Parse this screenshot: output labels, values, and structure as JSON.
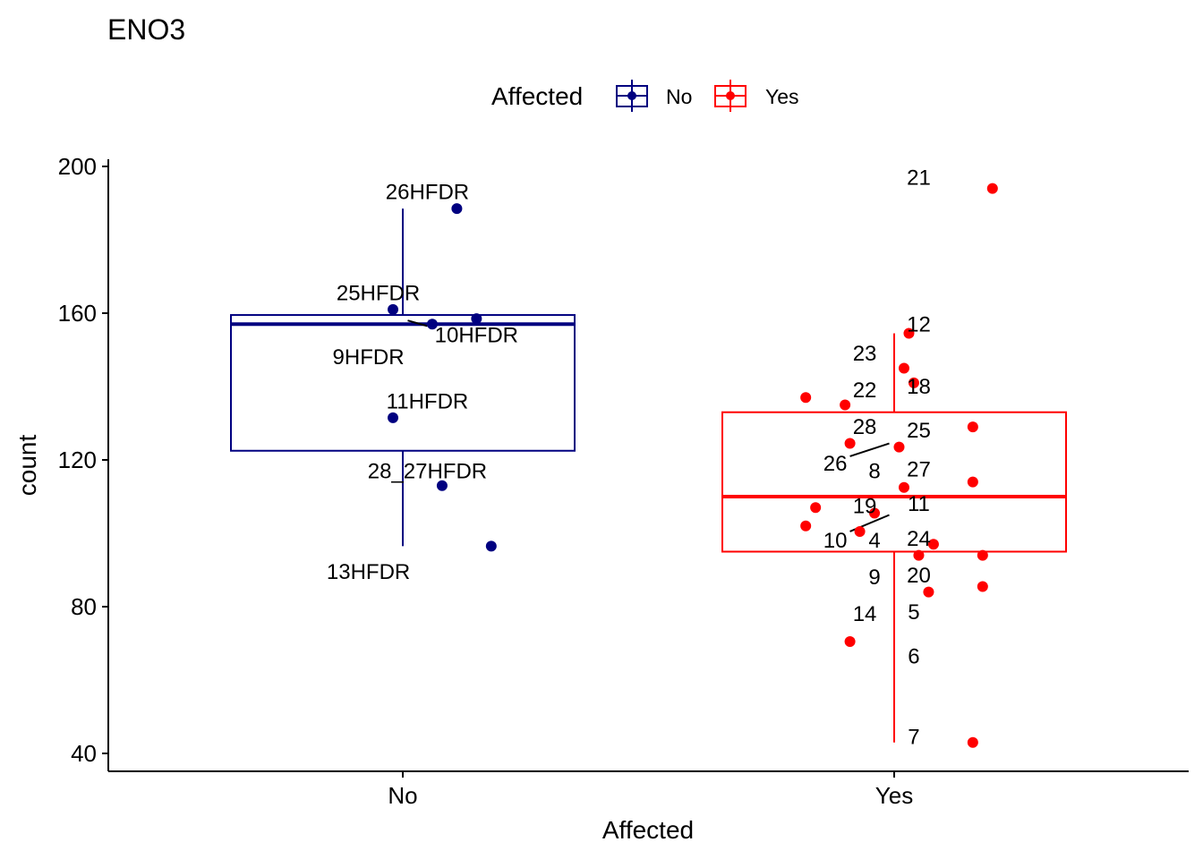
{
  "colors": {
    "No": "#000080",
    "Yes": "#ff0000",
    "axis": "#000000"
  },
  "chart_data": {
    "type": "boxplot",
    "title": "ENO3",
    "xlabel": "Affected",
    "ylabel": "count",
    "ylim": [
      35,
      202
    ],
    "yticks": [
      40,
      80,
      120,
      160,
      200
    ],
    "categories": [
      "No",
      "Yes"
    ],
    "legend": {
      "title": "Affected",
      "position": "top",
      "entries": [
        "No",
        "Yes"
      ]
    },
    "boxes": [
      {
        "group": "No",
        "whisker_low": 96.5,
        "q1": 122.5,
        "median": 157,
        "q3": 159.5,
        "whisker_high": 188.5
      },
      {
        "group": "Yes",
        "whisker_low": 43,
        "q1": 95,
        "median": 110,
        "q3": 133,
        "whisker_high": 154.5
      }
    ],
    "points": [
      {
        "group": "No",
        "jitter": 0.11,
        "y": 188.5
      },
      {
        "group": "No",
        "jitter": -0.02,
        "y": 161
      },
      {
        "group": "No",
        "jitter": 0.15,
        "y": 158.5
      },
      {
        "group": "No",
        "jitter": 0.06,
        "y": 157
      },
      {
        "group": "No",
        "jitter": -0.02,
        "y": 131.5
      },
      {
        "group": "No",
        "jitter": 0.08,
        "y": 113
      },
      {
        "group": "No",
        "jitter": 0.18,
        "y": 96.5
      },
      {
        "group": "Yes",
        "jitter": 0.2,
        "y": 194
      },
      {
        "group": "Yes",
        "jitter": 0.03,
        "y": 154.5
      },
      {
        "group": "Yes",
        "jitter": 0.02,
        "y": 145
      },
      {
        "group": "Yes",
        "jitter": 0.04,
        "y": 141
      },
      {
        "group": "Yes",
        "jitter": -0.18,
        "y": 137
      },
      {
        "group": "Yes",
        "jitter": -0.1,
        "y": 135
      },
      {
        "group": "Yes",
        "jitter": 0.16,
        "y": 129
      },
      {
        "group": "Yes",
        "jitter": -0.09,
        "y": 124.5
      },
      {
        "group": "Yes",
        "jitter": 0.01,
        "y": 123.5
      },
      {
        "group": "Yes",
        "jitter": 0.16,
        "y": 114
      },
      {
        "group": "Yes",
        "jitter": 0.02,
        "y": 112.5
      },
      {
        "group": "Yes",
        "jitter": -0.16,
        "y": 107
      },
      {
        "group": "Yes",
        "jitter": -0.04,
        "y": 105.5
      },
      {
        "group": "Yes",
        "jitter": -0.18,
        "y": 102
      },
      {
        "group": "Yes",
        "jitter": -0.07,
        "y": 100.5
      },
      {
        "group": "Yes",
        "jitter": 0.08,
        "y": 97
      },
      {
        "group": "Yes",
        "jitter": 0.05,
        "y": 94
      },
      {
        "group": "Yes",
        "jitter": 0.18,
        "y": 94
      },
      {
        "group": "Yes",
        "jitter": 0.18,
        "y": 85.5
      },
      {
        "group": "Yes",
        "jitter": 0.07,
        "y": 84
      },
      {
        "group": "Yes",
        "jitter": -0.09,
        "y": 70.5
      },
      {
        "group": "Yes",
        "jitter": 0.16,
        "y": 43
      }
    ],
    "labels": [
      {
        "text": "26HFDR",
        "group": "No",
        "dx": 0.05,
        "y": 193
      },
      {
        "text": "25HFDR",
        "group": "No",
        "dx": -0.05,
        "y": 165.5
      },
      {
        "text": "10HFDR",
        "group": "No",
        "dx": 0.15,
        "y": 154
      },
      {
        "text": "9HFDR",
        "group": "No",
        "dx": -0.07,
        "y": 148
      },
      {
        "text": "11HFDR",
        "group": "No",
        "dx": 0.05,
        "y": 136
      },
      {
        "text": "28_27HFDR",
        "group": "No",
        "dx": 0.05,
        "y": 117
      },
      {
        "text": "13HFDR",
        "group": "No",
        "dx": -0.07,
        "y": 89.5
      },
      {
        "text": "21",
        "group": "Yes",
        "dx": 0.05,
        "y": 197
      },
      {
        "text": "12",
        "group": "Yes",
        "dx": 0.05,
        "y": 157
      },
      {
        "text": "23",
        "group": "Yes",
        "dx": -0.06,
        "y": 149
      },
      {
        "text": "22",
        "group": "Yes",
        "dx": -0.06,
        "y": 139
      },
      {
        "text": "18",
        "group": "Yes",
        "dx": 0.05,
        "y": 140
      },
      {
        "text": "28",
        "group": "Yes",
        "dx": -0.06,
        "y": 129
      },
      {
        "text": "25",
        "group": "Yes",
        "dx": 0.05,
        "y": 128
      },
      {
        "text": "26",
        "group": "Yes",
        "dx": -0.12,
        "y": 119
      },
      {
        "text": "8",
        "group": "Yes",
        "dx": -0.04,
        "y": 117
      },
      {
        "text": "27",
        "group": "Yes",
        "dx": 0.05,
        "y": 117.5
      },
      {
        "text": "19",
        "group": "Yes",
        "dx": -0.06,
        "y": 107.5
      },
      {
        "text": "11",
        "group": "Yes",
        "dx": 0.05,
        "y": 108
      },
      {
        "text": "10",
        "group": "Yes",
        "dx": -0.12,
        "y": 98
      },
      {
        "text": "4",
        "group": "Yes",
        "dx": -0.04,
        "y": 98
      },
      {
        "text": "24",
        "group": "Yes",
        "dx": 0.05,
        "y": 98.5
      },
      {
        "text": "9",
        "group": "Yes",
        "dx": -0.04,
        "y": 88
      },
      {
        "text": "20",
        "group": "Yes",
        "dx": 0.05,
        "y": 88.5
      },
      {
        "text": "14",
        "group": "Yes",
        "dx": -0.06,
        "y": 78
      },
      {
        "text": "5",
        "group": "Yes",
        "dx": 0.04,
        "y": 78.5
      },
      {
        "text": "6",
        "group": "Yes",
        "dx": 0.04,
        "y": 66.5
      },
      {
        "text": "7",
        "group": "Yes",
        "dx": 0.04,
        "y": 44.5
      }
    ],
    "segments": [
      {
        "group": "No",
        "dx1": 0.01,
        "y1": 158,
        "dx2": 0.05,
        "y2": 156.5
      },
      {
        "group": "Yes",
        "dx1": -0.09,
        "y1": 121,
        "dx2": -0.01,
        "y2": 124.5
      },
      {
        "group": "Yes",
        "dx1": -0.09,
        "y1": 100.5,
        "dx2": -0.01,
        "y2": 105
      }
    ]
  }
}
